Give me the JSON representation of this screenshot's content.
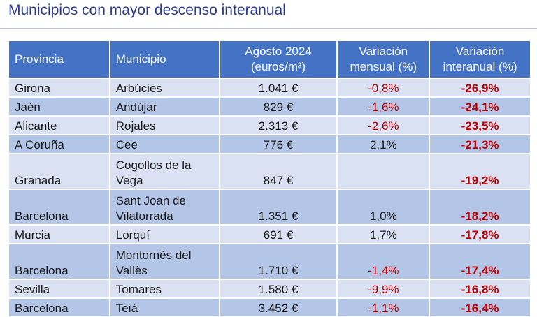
{
  "title": "Municipios con mayor descenso interanual",
  "table": {
    "headers": {
      "provincia": "Provincia",
      "municipio": "Municipio",
      "price_l1": "Agosto 2024",
      "price_l2": "(euros/m²)",
      "monthly_l1": "Variación",
      "monthly_l2": "mensual (%)",
      "yoy_l1": "Variación",
      "yoy_l2": "interanual (%)"
    },
    "rows": [
      {
        "provincia": "Girona",
        "municipio_l1": "Arbúcies",
        "municipio_l2": "",
        "price": "1.041 €",
        "monthly": "-0,8%",
        "yoy": "-26,9%"
      },
      {
        "provincia": "Jaén",
        "municipio_l1": "Andújar",
        "municipio_l2": "",
        "price": "829 €",
        "monthly": "-1,6%",
        "yoy": "-24,1%"
      },
      {
        "provincia": "Alicante",
        "municipio_l1": "Rojales",
        "municipio_l2": "",
        "price": "2.313 €",
        "monthly": "-2,6%",
        "yoy": "-23,5%"
      },
      {
        "provincia": "A Coruña",
        "municipio_l1": "Cee",
        "municipio_l2": "",
        "price": "776 €",
        "monthly": "2,1%",
        "yoy": "-21,3%"
      },
      {
        "provincia": "Granada",
        "municipio_l1": "Cogollos de la",
        "municipio_l2": "Vega",
        "price": "847 €",
        "monthly": "",
        "yoy": "-19,2%"
      },
      {
        "provincia": "Barcelona",
        "municipio_l1": "Sant Joan de",
        "municipio_l2": "Vilatorrada",
        "price": "1.351 €",
        "monthly": "1,0%",
        "yoy": "-18,2%"
      },
      {
        "provincia": "Murcia",
        "municipio_l1": "Lorquí",
        "municipio_l2": "",
        "price": "691 €",
        "monthly": "1,7%",
        "yoy": "-17,8%"
      },
      {
        "provincia": "Barcelona",
        "municipio_l1": "Montornès del",
        "municipio_l2": "Vallès",
        "price": "1.710 €",
        "monthly": "-1,4%",
        "yoy": "-17,4%"
      },
      {
        "provincia": "Sevilla",
        "municipio_l1": "Tomares",
        "municipio_l2": "",
        "price": "1.580 €",
        "monthly": "-9,9%",
        "yoy": "-16,8%"
      },
      {
        "provincia": "Barcelona",
        "municipio_l1": "Teià",
        "municipio_l2": "",
        "price": "3.452 €",
        "monthly": "-1,1%",
        "yoy": "-16,4%"
      }
    ]
  }
}
